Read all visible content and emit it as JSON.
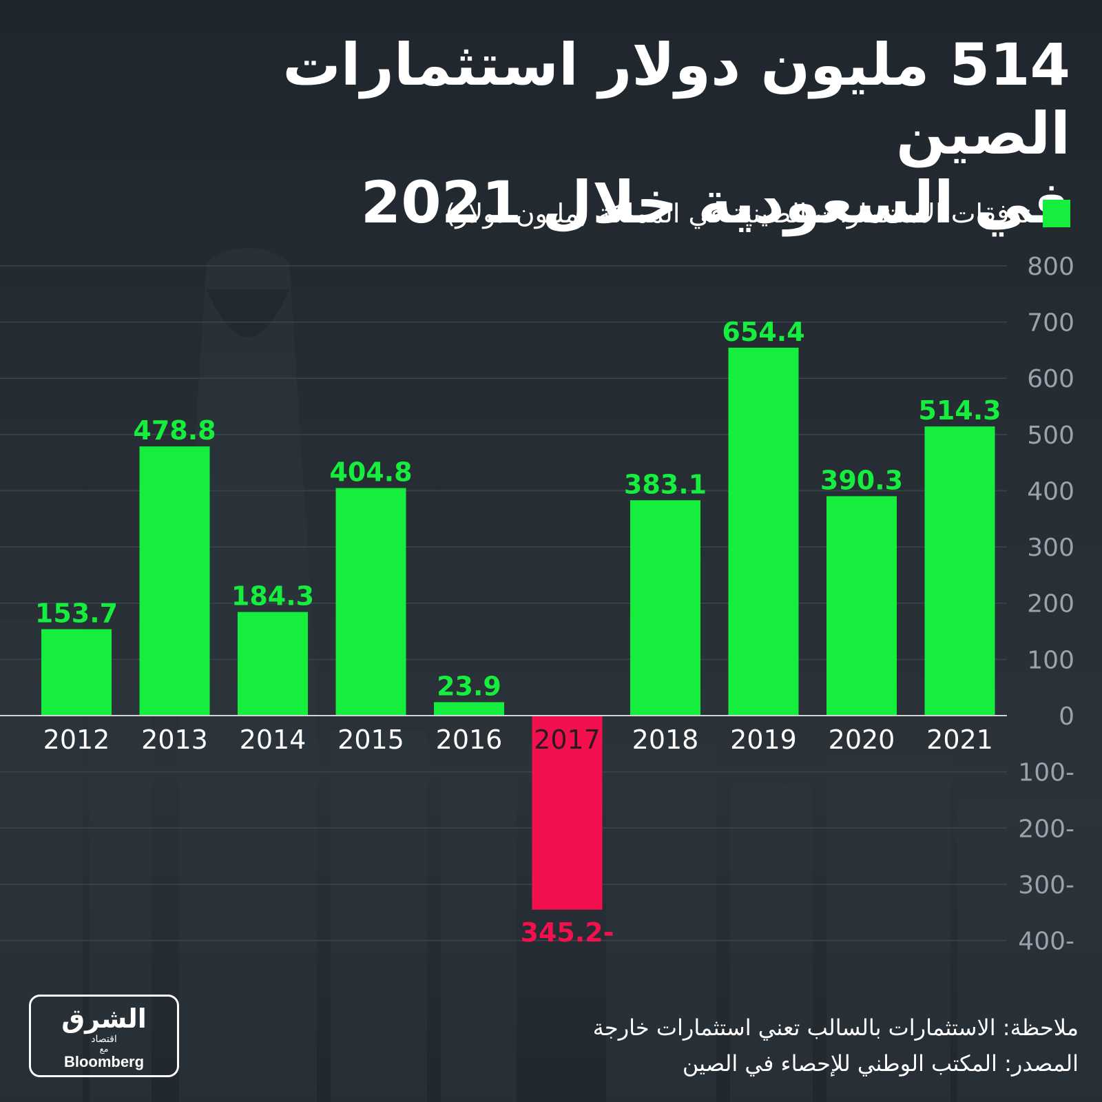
{
  "title": {
    "line1": "514 مليون دولار استثمارات الصين",
    "line2": "في السعودية خلال 2021"
  },
  "legend": {
    "label": "تدفقات الاستثمارات الصينية في المملكة (مليون دولار)",
    "color": "#16ee3e"
  },
  "colors": {
    "positive": "#16ee3e",
    "negative": "#f4104f",
    "axis_label": "#9aa3ab",
    "grid": "#3c444c"
  },
  "chart_data": {
    "type": "bar",
    "categories": [
      "2012",
      "2013",
      "2014",
      "2015",
      "2016",
      "2017",
      "2018",
      "2019",
      "2020",
      "2021"
    ],
    "series": [
      {
        "name": "تدفقات الاستثمارات الصينية في المملكة (مليون دولار)",
        "values": [
          153.7,
          478.8,
          184.3,
          404.8,
          23.9,
          -345.2,
          383.1,
          654.4,
          390.3,
          514.3
        ]
      }
    ],
    "value_labels": [
      "153.7",
      "478.8",
      "184.3",
      "404.8",
      "23.9",
      "345.2-",
      "383.1",
      "654.4",
      "390.3",
      "514.3"
    ],
    "y_ticks": [
      800,
      700,
      600,
      500,
      400,
      300,
      200,
      100,
      0,
      -100,
      -200,
      -300,
      -400
    ],
    "y_tick_labels": [
      "800",
      "700",
      "600",
      "500",
      "400",
      "300",
      "200",
      "100",
      "0",
      "100-",
      "200-",
      "300-",
      "400-"
    ],
    "ylim": [
      -400,
      800
    ],
    "y_axis_position": "right",
    "grid": true,
    "legend_position": "top-right"
  },
  "footer": {
    "note": "ملاحظة: الاستثمارات بالسالب تعني استثمارات خارجة",
    "source": "المصدر: المكتب الوطني للإحصاء في الصين"
  },
  "logo": {
    "name_ar": "الشرق",
    "sub_ar": "اقتصاد",
    "with_ar": "مع",
    "name_en": "Bloomberg"
  }
}
